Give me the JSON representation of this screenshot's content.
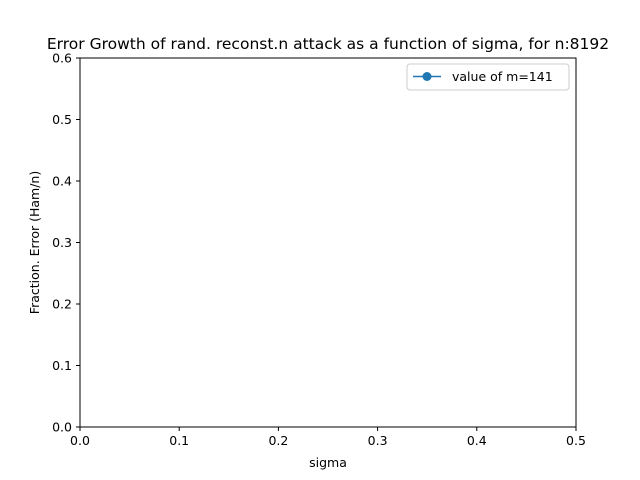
{
  "chart_data": {
    "type": "line",
    "title": "Error Growth of rand. reconst.n attack as a function of sigma, for n:8192",
    "xlabel": "sigma",
    "ylabel": "Fraction. Error (Ham/n)",
    "xlim": [
      0.0,
      0.5
    ],
    "ylim": [
      0.0,
      0.6
    ],
    "xticks": [
      "0.0",
      "0.1",
      "0.2",
      "0.3",
      "0.4",
      "0.5"
    ],
    "yticks": [
      "0.0",
      "0.1",
      "0.2",
      "0.3",
      "0.4",
      "0.5",
      "0.6"
    ],
    "series": [
      {
        "name": "value of m=141",
        "color": "#1f77b4",
        "marker": "circle",
        "x": [],
        "y": []
      }
    ],
    "legend_position": "top-right",
    "grid": false
  }
}
